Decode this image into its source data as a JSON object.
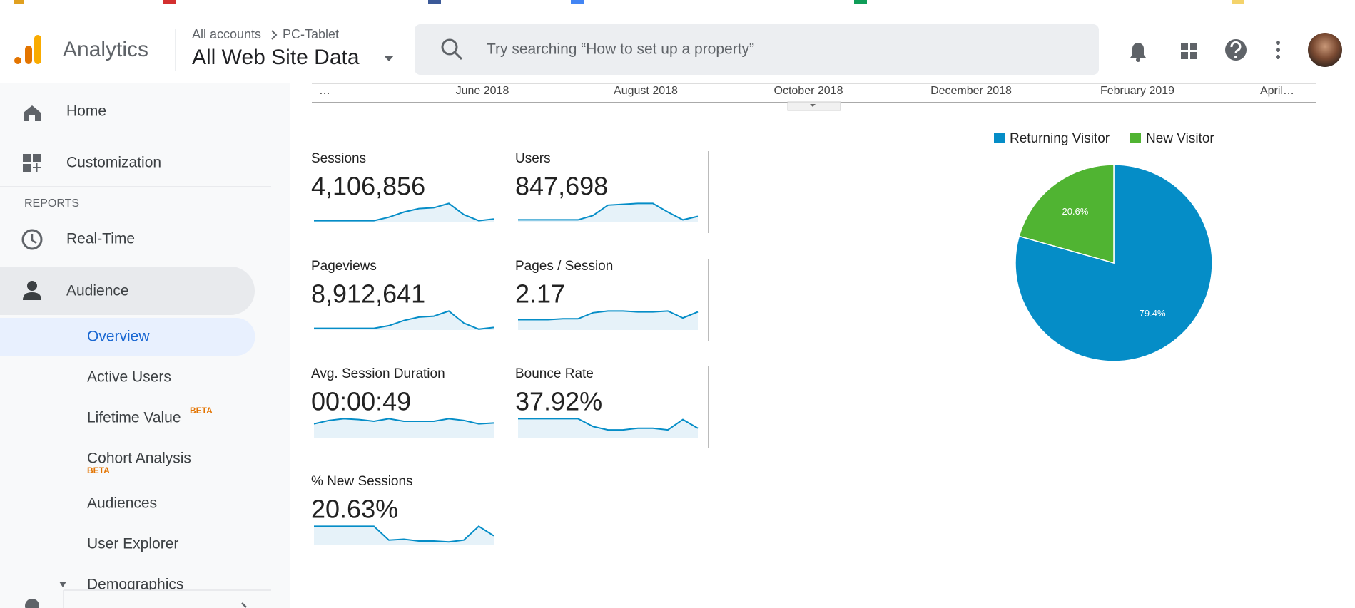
{
  "header": {
    "product": "Analytics",
    "breadcrumb": [
      "All accounts",
      "PC-Tablet"
    ],
    "view": "All Web Site Data",
    "search_placeholder": "Try searching “How to set up a property”"
  },
  "sidebar": {
    "home": "Home",
    "customization": "Customization",
    "section": "REPORTS",
    "realtime": "Real-Time",
    "audience": "Audience",
    "overview": "Overview",
    "active_users": "Active Users",
    "lifetime_value": {
      "label": "Lifetime Value",
      "badge": "BETA"
    },
    "cohort_analysis": {
      "label": "Cohort Analysis",
      "badge": "BETA"
    },
    "audiences": "Audiences",
    "user_explorer": "User Explorer",
    "demographics": "Demographics"
  },
  "timeline": {
    "labels": [
      "…",
      "June 2018",
      "August 2018",
      "October 2018",
      "December 2018",
      "February 2019",
      "April…"
    ]
  },
  "metrics": [
    {
      "name": "Sessions",
      "value": "4,106,856",
      "sparkline": [
        2,
        2,
        2,
        2,
        2,
        6,
        12,
        16,
        17,
        22,
        9,
        2,
        4
      ]
    },
    {
      "name": "Users",
      "value": "847,698",
      "sparkline": [
        3,
        3,
        3,
        3,
        3,
        8,
        20,
        21,
        22,
        22,
        12,
        3,
        7
      ]
    },
    {
      "name": "Pageviews",
      "value": "8,912,641",
      "sparkline": [
        2,
        2,
        2,
        2,
        2,
        5,
        11,
        15,
        16,
        22,
        8,
        1,
        3
      ]
    },
    {
      "name": "Pages / Session",
      "value": "2.17",
      "sparkline": [
        12,
        12,
        12,
        13,
        13,
        20,
        22,
        22,
        21,
        21,
        22,
        14,
        21
      ]
    },
    {
      "name": "Avg. Session Duration",
      "value": "00:00:49",
      "sparkline": [
        16,
        20,
        22,
        21,
        19,
        22,
        19,
        19,
        19,
        22,
        20,
        16,
        17
      ]
    },
    {
      "name": "Bounce Rate",
      "value": "37.92%",
      "sparkline": [
        22,
        22,
        22,
        22,
        22,
        13,
        9,
        9,
        11,
        11,
        9,
        21,
        11
      ]
    },
    {
      "name": "% New Sessions",
      "value": "20.63%",
      "sparkline": [
        22,
        22,
        22,
        22,
        22,
        6,
        7,
        5,
        5,
        4,
        6,
        22,
        11
      ]
    }
  ],
  "chart_data": {
    "type": "pie",
    "categories": [
      "Returning Visitor",
      "New Visitor"
    ],
    "values": [
      79.4,
      20.6
    ],
    "value_labels": [
      "79.4%",
      "20.6%"
    ],
    "colors": [
      "#058dc7",
      "#50b432"
    ],
    "legend": "top"
  }
}
